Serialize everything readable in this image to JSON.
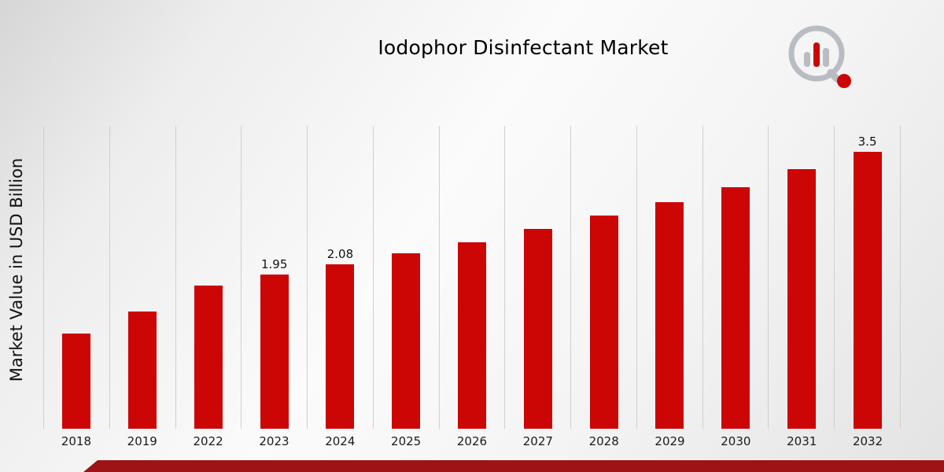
{
  "page": {
    "title": "Iodophor Disinfectant Market",
    "ylabel": "Market Value in USD Billion"
  },
  "chart_data": {
    "type": "bar",
    "title": "Iodophor Disinfectant Market",
    "xlabel": "",
    "ylabel": "Market Value in USD Billion",
    "categories": [
      "2018",
      "2019",
      "2022",
      "2023",
      "2024",
      "2025",
      "2026",
      "2027",
      "2028",
      "2029",
      "2030",
      "2031",
      "2032"
    ],
    "values": [
      1.2,
      1.48,
      1.81,
      1.95,
      2.08,
      2.22,
      2.36,
      2.53,
      2.7,
      2.87,
      3.05,
      3.28,
      3.5
    ],
    "point_labels": [
      "",
      "",
      "",
      "1.95",
      "2.08",
      "",
      "",
      "",
      "",
      "",
      "",
      "",
      "3.5"
    ],
    "ylim": [
      0,
      3.83
    ],
    "grid": "vertical-only",
    "legend": "none",
    "units": "USD Billion"
  },
  "colors": {
    "bar": "#cc0505",
    "footer_stripe": "#9e1414",
    "gridline": "#cfcfcf",
    "logo_gray": "#b9bdc2",
    "logo_red": "#cc0505",
    "text": "#111111"
  }
}
